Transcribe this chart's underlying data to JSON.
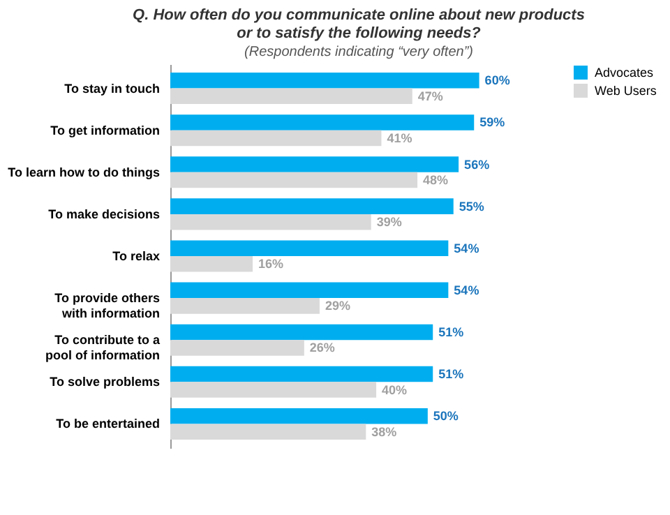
{
  "chart_data": {
    "type": "bar",
    "orientation": "horizontal",
    "title": "Q. How often do you communicate online about new products or to satisfy the following needs?",
    "subtitle": "(Respondents indicating “very often”)",
    "categories": [
      "To stay in touch",
      "To get information",
      "To learn how to do things",
      "To make decisions",
      "To relax",
      "To provide others\nwith information",
      "To contribute to a\npool of information",
      "To solve problems",
      "To be entertained"
    ],
    "series": [
      {
        "name": "Advocates",
        "color": "#00aeef",
        "values": [
          60,
          59,
          56,
          55,
          54,
          54,
          51,
          51,
          50
        ],
        "value_labels": [
          "60%",
          "59%",
          "56%",
          "55%",
          "54%",
          "54%",
          "51%",
          "51%",
          "50%"
        ]
      },
      {
        "name": "Web Users",
        "color": "#d9d9d9",
        "values": [
          47,
          41,
          48,
          39,
          16,
          29,
          26,
          40,
          38
        ],
        "value_labels": [
          "47%",
          "41%",
          "48%",
          "39%",
          "16%",
          "29%",
          "26%",
          "40%",
          "38%"
        ]
      }
    ],
    "legend": "right",
    "grid": false
  }
}
